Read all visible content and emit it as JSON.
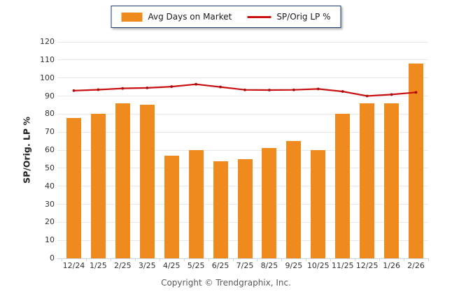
{
  "legend": {
    "bar_label": "Avg Days on Market",
    "line_label": "SP/Orig LP %"
  },
  "footer": {
    "copyright": "Copyright © Trendgraphix, Inc."
  },
  "colors": {
    "bar": "#EE8A1E",
    "line": "#C90F0F",
    "line_marker": "#A80C0C",
    "legend_border": "#1E3A6E",
    "grid": "#E8E8E8",
    "axis": "#CBD5E0",
    "tick_label": "#333333",
    "axis_title": "#222222",
    "copyright_text": "#595959"
  },
  "chart_data": {
    "type": "bar",
    "subtype": "bar+line combo",
    "title": "",
    "xlabel": "",
    "ylabel": "SP/Orig. LP %",
    "ylim": [
      0,
      120
    ],
    "ytick_step": 10,
    "grid": true,
    "legend_position": "top-center",
    "categories": [
      "12/24",
      "1/25",
      "2/25",
      "3/25",
      "4/25",
      "5/25",
      "6/25",
      "7/25",
      "8/25",
      "9/25",
      "10/25",
      "11/25",
      "12/25",
      "1/26",
      "2/26"
    ],
    "series": [
      {
        "name": "Avg Days on Market",
        "type": "bar",
        "color": "#EE8A1E",
        "values": [
          78,
          80,
          86,
          85,
          57,
          60,
          54,
          55,
          61,
          65,
          60,
          80,
          86,
          86,
          108
        ]
      },
      {
        "name": "SP/Orig LP %",
        "type": "line",
        "color": "#C90F0F",
        "values": [
          93,
          93.5,
          94.2,
          94.5,
          95.2,
          96.5,
          95,
          93.4,
          93.3,
          93.4,
          93.9,
          92.5,
          90,
          90.8,
          92
        ]
      }
    ]
  }
}
